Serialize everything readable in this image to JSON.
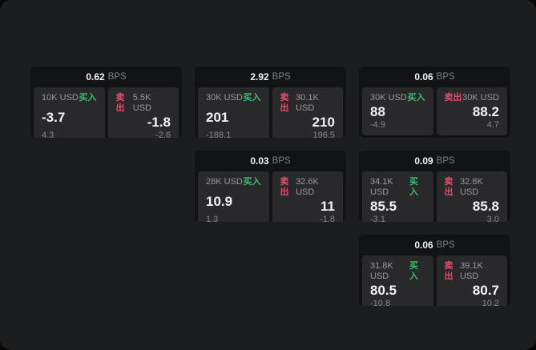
{
  "labels": {
    "bps": "BPS",
    "buy": "买入",
    "sell": "卖出"
  },
  "colors": {
    "page_bg": "#080808",
    "surface_bg": "#1c1d1e",
    "card_bg": "#121314",
    "panel_bg": "#29292b",
    "buy_green": "#3dbb6e",
    "sell_red": "#e24e6b",
    "text_bright": "#f2f3f4",
    "text_muted": "#97999c",
    "text_dim": "#7e8184",
    "text_dim2": "#85878a"
  },
  "cards": [
    {
      "bps": "0.62",
      "buy": {
        "amount": "10K USD",
        "value": "-3.7",
        "sub": "4.3"
      },
      "sell": {
        "amount": "5.5K USD",
        "value": "-1.8",
        "sub": "-2.6"
      }
    },
    {
      "bps": "2.92",
      "buy": {
        "amount": "30K USD",
        "value": "201",
        "sub": "-188.1"
      },
      "sell": {
        "amount": "30.1K USD",
        "value": "210",
        "sub": "196.5"
      }
    },
    {
      "bps": "0.06",
      "buy": {
        "amount": "30K USD",
        "value": "88",
        "sub": "-4.9"
      },
      "sell": {
        "amount": "30K USD",
        "value": "88.2",
        "sub": "4.7"
      }
    },
    {
      "bps": "0.03",
      "buy": {
        "amount": "28K USD",
        "value": "10.9",
        "sub": "1.3"
      },
      "sell": {
        "amount": "32.6K USD",
        "value": "11",
        "sub": "-1.8"
      }
    },
    {
      "bps": "0.09",
      "buy": {
        "amount": "34.1K USD",
        "value": "85.5",
        "sub": "-3.1"
      },
      "sell": {
        "amount": "32.8K USD",
        "value": "85.8",
        "sub": "3.0"
      }
    },
    {
      "bps": "0.06",
      "buy": {
        "amount": "31.8K USD",
        "value": "80.5",
        "sub": "-10.8"
      },
      "sell": {
        "amount": "39.1K USD",
        "value": "80.7",
        "sub": "10.2"
      }
    }
  ]
}
